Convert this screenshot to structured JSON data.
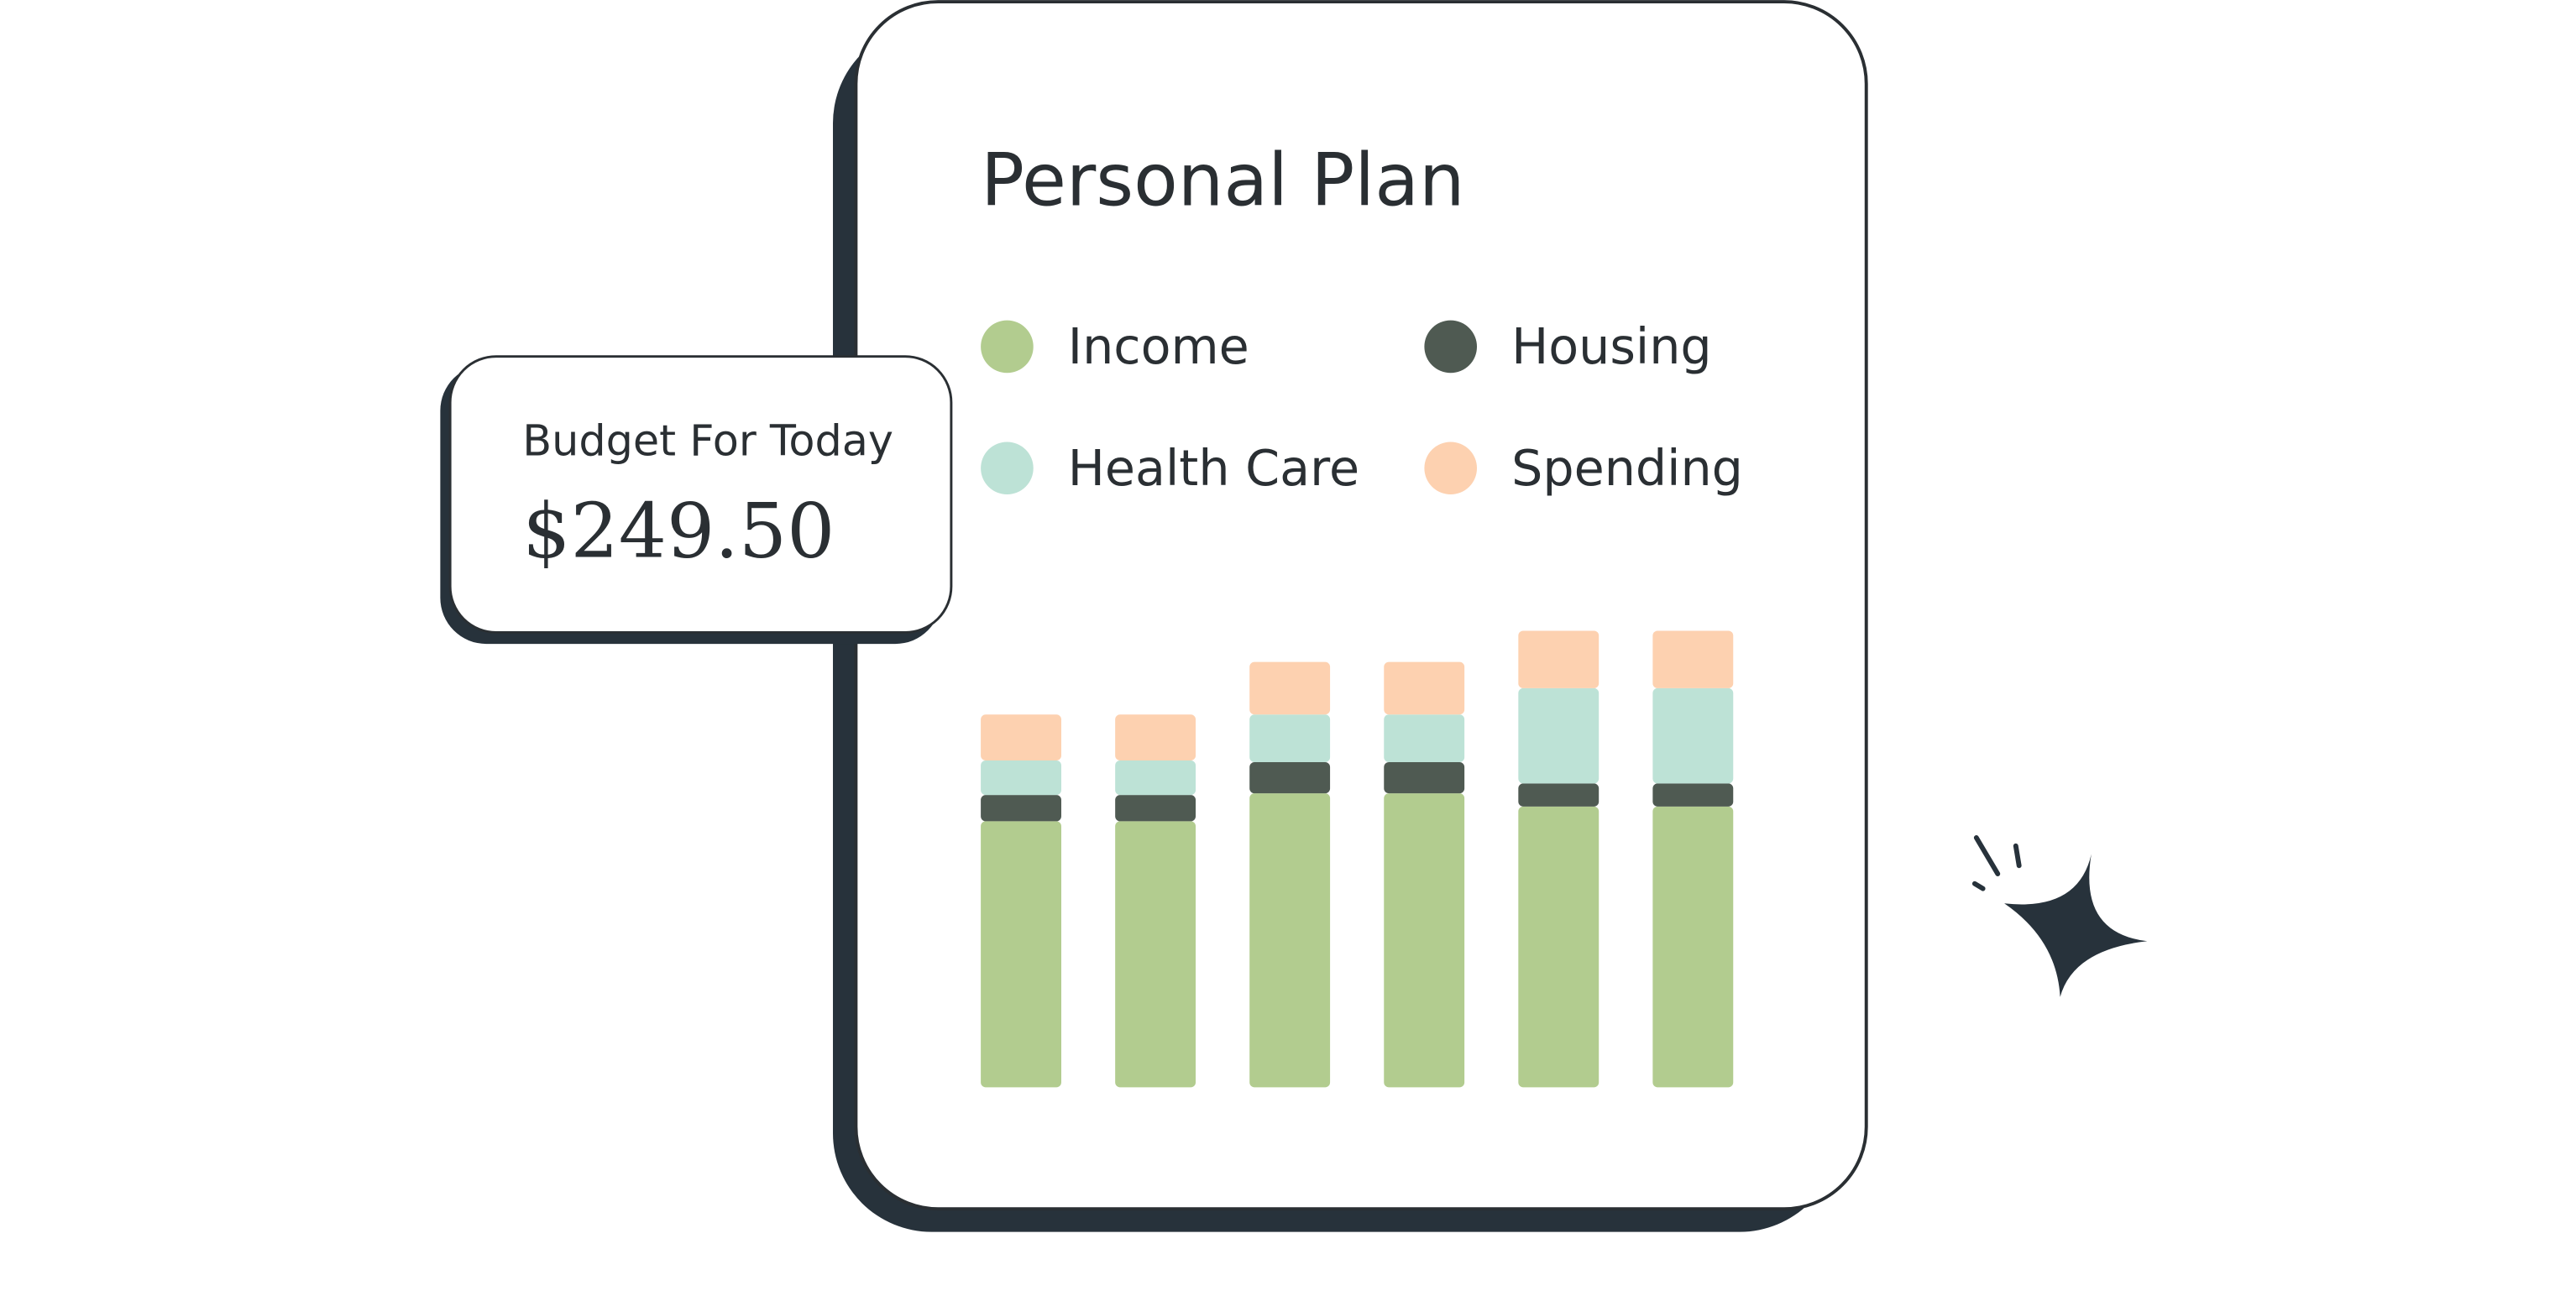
{
  "card": {
    "title": "Budget For Today",
    "amount": "$249.50"
  },
  "chart_data": {
    "type": "bar",
    "stacked": true,
    "title": "Personal Plan",
    "categories": [
      null,
      null,
      null,
      null,
      null,
      null
    ],
    "series": [
      {
        "name": "Income",
        "color": "#b2cc8f",
        "values": [
          162,
          162,
          179,
          179,
          171,
          171
        ]
      },
      {
        "name": "Housing",
        "color": "#4f5a52",
        "values": [
          16,
          16,
          19,
          19,
          14,
          14
        ]
      },
      {
        "name": "Health Care",
        "color": "#bde2d6",
        "values": [
          21,
          21,
          29,
          29,
          58,
          58
        ]
      },
      {
        "name": "Spending",
        "color": "#fdd1b0",
        "values": [
          28,
          28,
          32,
          32,
          35,
          35
        ]
      }
    ],
    "ylim": [
      0,
      280
    ]
  }
}
